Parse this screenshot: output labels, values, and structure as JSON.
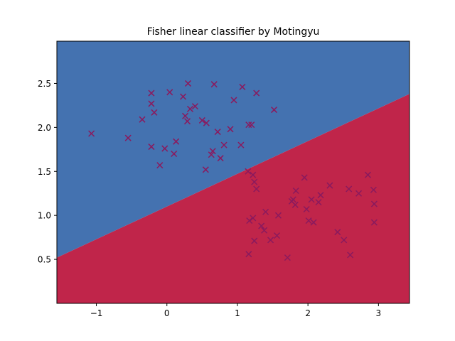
{
  "chart_data": {
    "type": "scatter",
    "title": "Fisher linear classifier by Motingyu",
    "xlabel": "",
    "ylabel": "",
    "xlim": [
      -1.56,
      3.44
    ],
    "ylim": [
      0.0,
      2.98
    ],
    "x_ticks": [
      -1,
      0,
      1,
      2,
      3
    ],
    "x_tick_labels": [
      "−1",
      "0",
      "1",
      "2",
      "3"
    ],
    "y_ticks": [
      0.5,
      1.0,
      1.5,
      2.0,
      2.5
    ],
    "y_tick_labels": [
      "0.5",
      "1.0",
      "1.5",
      "2.0",
      "2.5"
    ],
    "grid": false,
    "decision_boundary": {
      "points": [
        [
          -1.56,
          0.52
        ],
        [
          3.44,
          2.38
        ]
      ]
    },
    "regions": {
      "upper_color": "#4472b0",
      "lower_color": "#c0254a"
    },
    "marker": {
      "shape": "x",
      "color": "#8a1a5e"
    },
    "series": [
      {
        "points": [
          [
            -1.07,
            1.93
          ],
          [
            -0.55,
            1.88
          ],
          [
            -0.35,
            2.09
          ],
          [
            -0.22,
            2.39
          ],
          [
            -0.22,
            2.27
          ],
          [
            -0.18,
            2.17
          ],
          [
            -0.22,
            1.78
          ],
          [
            -0.1,
            1.57
          ],
          [
            -0.03,
            1.76
          ],
          [
            0.04,
            2.4
          ],
          [
            0.1,
            1.7
          ],
          [
            0.13,
            1.84
          ],
          [
            0.23,
            2.35
          ],
          [
            0.26,
            2.13
          ],
          [
            0.29,
            2.07
          ],
          [
            0.3,
            2.5
          ],
          [
            0.33,
            2.21
          ],
          [
            0.4,
            2.24
          ],
          [
            0.5,
            2.08
          ],
          [
            0.56,
            2.05
          ],
          [
            0.55,
            1.52
          ],
          [
            0.63,
            1.69
          ],
          [
            0.65,
            1.73
          ],
          [
            0.67,
            2.49
          ],
          [
            0.72,
            1.95
          ],
          [
            0.76,
            1.65
          ],
          [
            0.81,
            1.8
          ],
          [
            0.9,
            1.98
          ],
          [
            0.95,
            2.31
          ],
          [
            1.05,
            1.8
          ],
          [
            1.07,
            2.46
          ],
          [
            1.16,
            2.03
          ],
          [
            1.2,
            2.03
          ],
          [
            1.27,
            2.39
          ],
          [
            1.52,
            2.2
          ]
        ]
      },
      {
        "points": [
          [
            1.15,
            1.5
          ],
          [
            1.22,
            1.46
          ],
          [
            1.24,
            1.38
          ],
          [
            1.27,
            1.3
          ],
          [
            1.16,
            0.56
          ],
          [
            1.17,
            0.94
          ],
          [
            1.22,
            0.97
          ],
          [
            1.24,
            0.71
          ],
          [
            1.34,
            0.88
          ],
          [
            1.38,
            0.83
          ],
          [
            1.4,
            1.04
          ],
          [
            1.47,
            0.72
          ],
          [
            1.56,
            0.77
          ],
          [
            1.58,
            1.0
          ],
          [
            1.71,
            0.52
          ],
          [
            1.77,
            1.16
          ],
          [
            1.79,
            1.18
          ],
          [
            1.82,
            1.12
          ],
          [
            1.83,
            1.28
          ],
          [
            1.95,
            1.43
          ],
          [
            1.98,
            1.07
          ],
          [
            2.01,
            0.94
          ],
          [
            2.05,
            1.18
          ],
          [
            2.08,
            0.92
          ],
          [
            2.15,
            1.15
          ],
          [
            2.18,
            1.23
          ],
          [
            2.31,
            1.34
          ],
          [
            2.42,
            0.81
          ],
          [
            2.51,
            0.72
          ],
          [
            2.58,
            1.3
          ],
          [
            2.6,
            0.55
          ],
          [
            2.72,
            1.25
          ],
          [
            2.85,
            1.46
          ],
          [
            2.93,
            1.29
          ],
          [
            2.94,
            1.13
          ],
          [
            2.94,
            0.92
          ]
        ]
      }
    ]
  }
}
